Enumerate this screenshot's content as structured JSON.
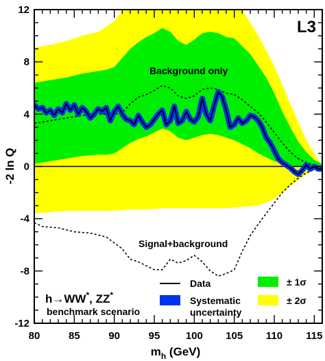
{
  "chart_data": {
    "type": "line",
    "label": "L3",
    "xlabel": "m",
    "xlabel_sub": "h",
    "xlabel_unit": " (GeV)",
    "ylabel": "-2 ln Q",
    "xlim": [
      80,
      116
    ],
    "ylim": [
      -12,
      12
    ],
    "xticks": [
      80,
      85,
      90,
      95,
      100,
      105,
      110,
      115
    ],
    "yticks": [
      -12,
      -8,
      -4,
      0,
      4,
      8,
      12
    ],
    "background_expected": {
      "name": "Background only",
      "x": [
        80,
        82,
        84,
        86,
        88,
        90,
        91,
        92,
        93,
        94,
        95,
        96,
        97,
        98,
        99,
        100,
        101,
        102,
        103,
        104,
        105,
        106,
        107,
        108,
        109,
        110,
        111,
        112,
        113,
        114,
        115,
        116
      ],
      "y": [
        3.3,
        3.5,
        3.7,
        3.9,
        4.0,
        4.0,
        4.1,
        4.8,
        5.3,
        5.5,
        5.8,
        6.2,
        6.0,
        5.4,
        5.2,
        5.4,
        5.9,
        6.0,
        5.9,
        5.6,
        5.5,
        5.1,
        4.6,
        4.1,
        3.4,
        2.6,
        1.8,
        1.1,
        0.6,
        0.3,
        0.1,
        0.0
      ]
    },
    "signal_expected": {
      "name": "Signal+background",
      "x": [
        80,
        81,
        83,
        85,
        87,
        89,
        91,
        92,
        93,
        94,
        95,
        96,
        97,
        98,
        99,
        100,
        101,
        102,
        103,
        104,
        105,
        106,
        107,
        108,
        109,
        110,
        111,
        112,
        113,
        114,
        115,
        116
      ],
      "y": [
        -4.3,
        -4.6,
        -4.7,
        -5.0,
        -5.1,
        -5.4,
        -6.3,
        -7.1,
        -7.3,
        -7.6,
        -7.9,
        -7.9,
        -7.1,
        -7.4,
        -7.2,
        -6.8,
        -7.3,
        -8.0,
        -8.4,
        -8.2,
        -7.9,
        -6.5,
        -5.3,
        -4.4,
        -3.6,
        -2.8,
        -2.0,
        -1.4,
        -0.9,
        -0.5,
        -0.2,
        0.0
      ]
    },
    "data": {
      "name": "Data",
      "x": [
        80,
        80.5,
        81,
        81.5,
        82,
        82.5,
        83,
        83.5,
        84,
        84.5,
        85,
        85.5,
        86,
        86.5,
        87,
        87.5,
        88,
        88.5,
        89,
        89.5,
        90,
        90.5,
        91,
        91.5,
        92,
        92.5,
        93,
        93.5,
        94,
        94.5,
        95,
        95.5,
        96,
        96.5,
        97,
        97.5,
        98,
        98.5,
        99,
        99.5,
        100,
        100.5,
        101,
        101.5,
        102,
        102.5,
        103,
        103.5,
        104,
        104.5,
        105,
        105.5,
        106,
        106.5,
        107,
        107.5,
        108,
        108.5,
        109,
        109.5,
        110,
        110.5,
        111,
        111.5,
        112,
        112.5,
        113,
        113.5,
        114,
        114.5,
        115,
        115.5,
        116
      ],
      "y": [
        4.7,
        4.4,
        4.5,
        4.1,
        4.3,
        3.9,
        4.4,
        4.1,
        4.8,
        4.3,
        4.7,
        4.0,
        4.5,
        4.2,
        3.7,
        4.0,
        4.4,
        4.2,
        4.5,
        3.5,
        4.2,
        4.6,
        4.0,
        3.6,
        3.5,
        3.2,
        3.9,
        3.4,
        3.0,
        3.2,
        3.6,
        4.0,
        4.3,
        3.2,
        3.5,
        4.6,
        3.3,
        3.5,
        4.2,
        3.6,
        3.4,
        3.8,
        5.2,
        4.0,
        3.5,
        4.7,
        5.7,
        5.3,
        4.3,
        3.0,
        3.2,
        3.7,
        3.3,
        3.5,
        3.9,
        3.8,
        3.5,
        3.0,
        2.2,
        1.8,
        1.2,
        0.6,
        0.3,
        0.1,
        -0.1,
        -0.4,
        -0.6,
        -0.3,
        0.1,
        -0.2,
        0.0,
        -0.2,
        -0.2
      ]
    },
    "band_1sigma": {
      "name": "± 1σ",
      "x": [
        80,
        82,
        84,
        86,
        88,
        89,
        90,
        91,
        92,
        93,
        94,
        95,
        96,
        97,
        98,
        99,
        100,
        101,
        102,
        103,
        104,
        105,
        106,
        107,
        108,
        109,
        110,
        111,
        112,
        113,
        114,
        115,
        116
      ],
      "upper": [
        6.4,
        6.6,
        6.8,
        7.1,
        7.3,
        7.4,
        7.6,
        8.3,
        9.0,
        9.5,
        9.9,
        10.2,
        10.6,
        10.3,
        9.6,
        9.3,
        9.7,
        10.2,
        10.3,
        10.2,
        9.9,
        9.8,
        9.2,
        8.6,
        7.7,
        6.8,
        5.6,
        4.2,
        3.0,
        1.9,
        1.1,
        0.5,
        0.2
      ],
      "lower": [
        0.2,
        0.4,
        0.6,
        0.8,
        0.9,
        0.9,
        1.0,
        1.4,
        1.8,
        2.1,
        2.3,
        2.6,
        2.9,
        2.7,
        2.2,
        2.0,
        2.2,
        2.4,
        2.5,
        2.4,
        2.2,
        2.0,
        1.7,
        1.4,
        1.0,
        0.7,
        0.4,
        0.2,
        0.1,
        0.0,
        0.0,
        0.0,
        0.0
      ]
    },
    "band_2sigma": {
      "name": "± 2σ",
      "x": [
        80,
        82,
        84,
        86,
        88,
        90,
        92,
        94,
        96,
        98,
        100,
        102,
        104,
        106,
        108,
        110,
        112,
        114,
        116
      ],
      "upper": [
        9.1,
        9.3,
        9.6,
        10.0,
        10.3,
        11.1,
        12.8,
        14.0,
        14.5,
        14.0,
        14.2,
        14.5,
        13.5,
        12.0,
        10.0,
        7.7,
        4.8,
        2.0,
        0.0
      ],
      "lower": [
        -3.6,
        -3.5,
        -3.4,
        -3.4,
        -3.4,
        -3.4,
        -3.3,
        -3.3,
        -3.2,
        -3.2,
        -3.2,
        -3.2,
        -3.2,
        -3.1,
        -3.0,
        -2.5,
        -1.5,
        -0.6,
        0.0
      ]
    },
    "annotations": {
      "background_label": "Background only",
      "signal_label": "Signal+background",
      "process_main": "h→WW",
      "process_sup1": "*",
      "process_mid": ", ZZ",
      "process_sup2": "*",
      "process_sub": "benchmark scenario"
    },
    "legend": {
      "data_label": "Data",
      "syst_label_line1": "Systematic",
      "syst_label_line2": "uncertainty",
      "sigma1_label": "± 1σ",
      "sigma2_label": "± 2σ"
    },
    "colors": {
      "sigma2": "#ffff00",
      "sigma1": "#00ee00",
      "systematic": "#0033ee",
      "line": "#000000"
    }
  }
}
